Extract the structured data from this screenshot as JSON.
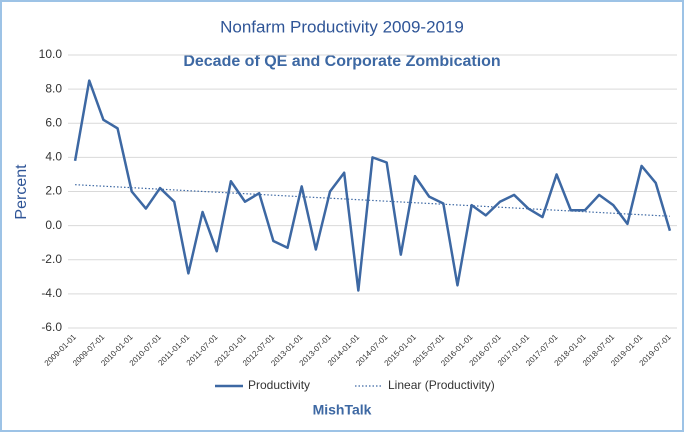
{
  "chart_data": {
    "type": "line",
    "title": "Nonfarm Productivity 2009-2019",
    "subtitle": "Decade of QE and Corporate Zombication",
    "ylabel": "Percent",
    "footer": "MishTalk",
    "categories": [
      "2009-01-01",
      null,
      "2009-07-01",
      null,
      "2010-01-01",
      null,
      "2010-07-01",
      null,
      "2011-01-01",
      null,
      "2011-07-01",
      null,
      "2012-01-01",
      null,
      "2012-07-01",
      null,
      "2013-01-01",
      null,
      "2013-07-01",
      null,
      "2014-01-01",
      null,
      "2014-07-01",
      null,
      "2015-01-01",
      null,
      "2015-07-01",
      null,
      "2016-01-01",
      null,
      "2016-07-01",
      null,
      "2017-01-01",
      null,
      "2017-07-01",
      null,
      "2018-01-01",
      null,
      "2018-07-01",
      null,
      "2019-01-01",
      null,
      "2019-07-01"
    ],
    "series": [
      {
        "name": "Productivity",
        "color": "#3d68a3",
        "values": [
          3.8,
          8.5,
          6.2,
          5.7,
          2.0,
          1.0,
          2.2,
          1.4,
          -2.8,
          0.8,
          -1.5,
          2.6,
          1.4,
          1.9,
          -0.9,
          -1.3,
          2.3,
          -1.4,
          2.0,
          3.1,
          -3.8,
          4.0,
          3.7,
          -1.7,
          2.9,
          1.7,
          1.3,
          -3.5,
          1.2,
          0.6,
          1.4,
          1.8,
          1.0,
          0.5,
          3.0,
          0.9,
          0.9,
          1.8,
          1.2,
          0.1,
          3.5,
          2.5,
          -0.3
        ]
      }
    ],
    "trendline": {
      "name": "Linear (Productivity)",
      "color": "#3d68a3",
      "style": "dotted",
      "values": [
        2.4,
        0.55
      ]
    },
    "ylim": [
      -6,
      10
    ],
    "yticks": [
      {
        "value": -6,
        "label": "-6.0"
      },
      {
        "value": -4,
        "label": "-4.0"
      },
      {
        "value": -2,
        "label": "-2.0"
      },
      {
        "value": 0,
        "label": "0.0"
      },
      {
        "value": 2,
        "label": "2.0"
      },
      {
        "value": 4,
        "label": "4.0"
      },
      {
        "value": 6,
        "label": "6.0"
      },
      {
        "value": 8,
        "label": "8.0"
      },
      {
        "value": 10,
        "label": "10.0"
      }
    ],
    "grid": true,
    "legend": "bottom"
  }
}
